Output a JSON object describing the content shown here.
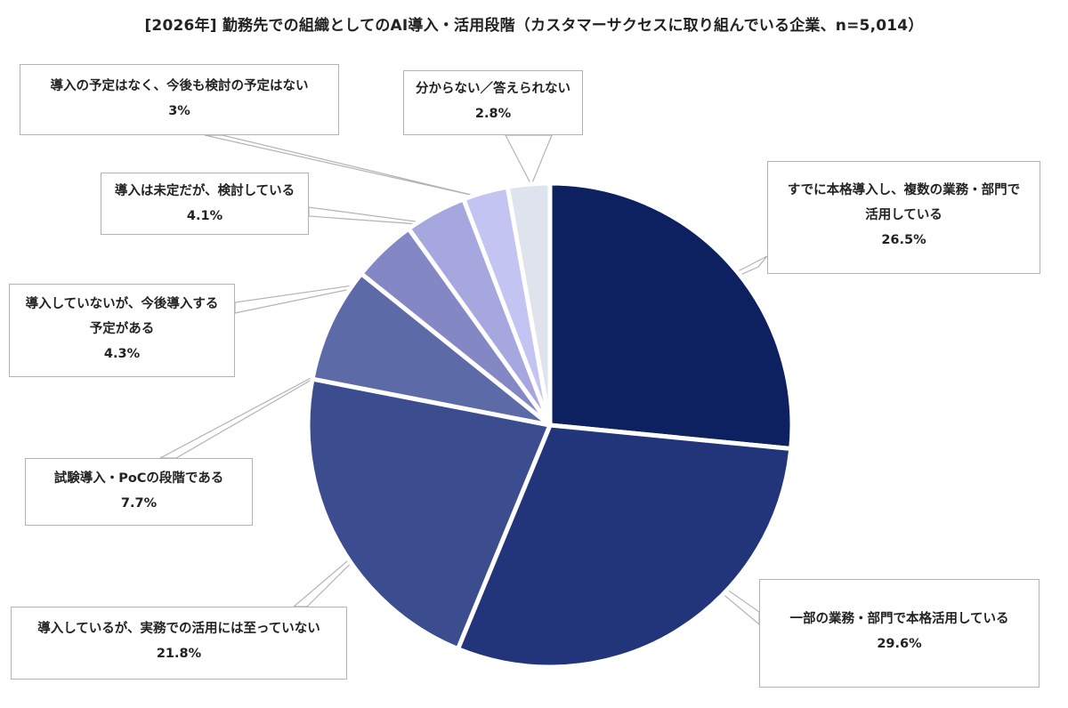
{
  "chart_data": {
    "type": "pie",
    "title": "[2026年] 勤務先での組織としてのAI導入・活用段階（カスタマーサクセスに取り組んでいる企業、n=5,014）",
    "start_angle_deg": 0,
    "direction": "clockwise",
    "slices": [
      {
        "label_lines": [
          "すでに本格導入し、複数の業務・部門で",
          "活用している"
        ],
        "value": 26.5,
        "color": "#0d2060"
      },
      {
        "label_lines": [
          "一部の業務・部門で本格活用している"
        ],
        "value": 29.6,
        "color": "#22357a"
      },
      {
        "label_lines": [
          "導入しているが、実務での活用には至っていない"
        ],
        "value": 21.8,
        "color": "#3b4d8f"
      },
      {
        "label_lines": [
          "試験導入・PoCの段階である"
        ],
        "value": 7.7,
        "color": "#5c6aa8"
      },
      {
        "label_lines": [
          "導入していないが、今後導入する",
          "予定がある"
        ],
        "value": 4.3,
        "color": "#8388c5"
      },
      {
        "label_lines": [
          "導入は未定だが、検討している"
        ],
        "value": 4.1,
        "color": "#a5a7de"
      },
      {
        "label_lines": [
          "導入の予定はなく、今後も検討の予定はない"
        ],
        "value": 3.0,
        "color": "#c3c4f2"
      },
      {
        "label_lines": [
          "分からない／答えられない"
        ],
        "value": 2.8,
        "color": "#dfe3ee"
      }
    ]
  }
}
